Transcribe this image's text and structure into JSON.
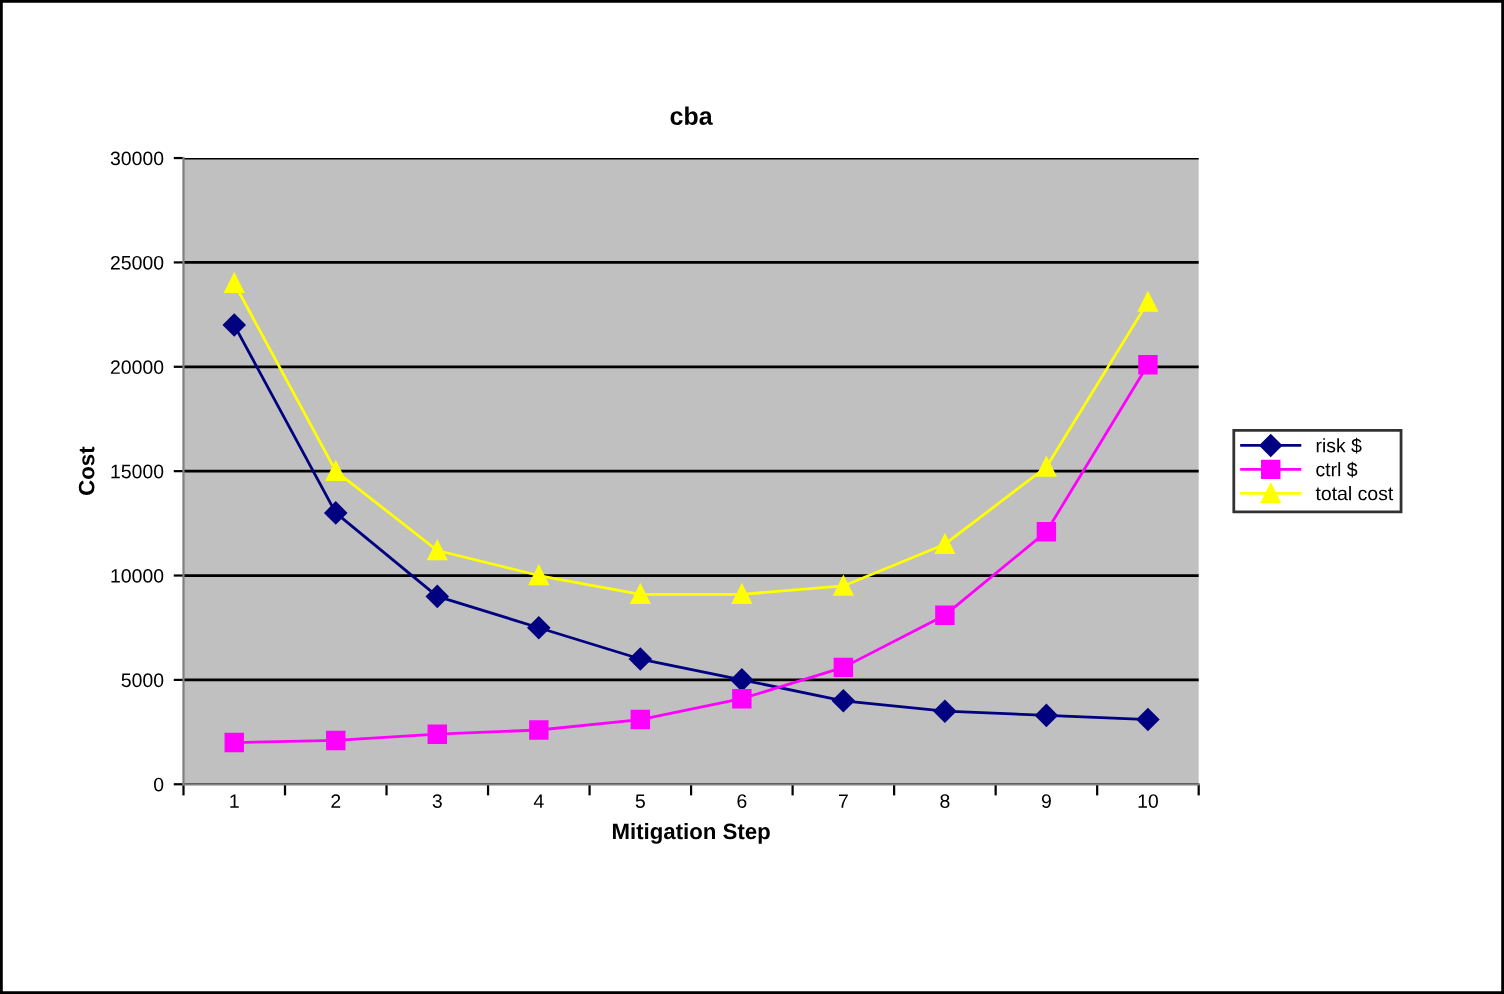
{
  "chart_data": {
    "type": "line",
    "title": "cba",
    "xlabel": "Mitigation Step",
    "ylabel": "Cost",
    "categories": [
      "1",
      "2",
      "3",
      "4",
      "5",
      "6",
      "7",
      "8",
      "9",
      "10"
    ],
    "series": [
      {
        "name": "risk $",
        "color": "#000080",
        "marker": "diamond",
        "values": [
          22000,
          13000,
          9000,
          7500,
          6000,
          5000,
          4000,
          3500,
          3300,
          3100
        ]
      },
      {
        "name": "ctrl $",
        "color": "#ff00ff",
        "marker": "square",
        "values": [
          2000,
          2100,
          2400,
          2600,
          3100,
          4100,
          5600,
          8100,
          12100,
          20100
        ]
      },
      {
        "name": "total cost",
        "color": "#ffff00",
        "marker": "triangle",
        "values": [
          24000,
          15000,
          11200,
          10000,
          9100,
          9100,
          9500,
          11500,
          15200,
          23100
        ]
      }
    ],
    "ylim": [
      0,
      30000
    ],
    "yticks": [
      0,
      5000,
      10000,
      15000,
      20000,
      25000,
      30000
    ],
    "grid": "y",
    "legend": "right",
    "line_style": "solid"
  }
}
